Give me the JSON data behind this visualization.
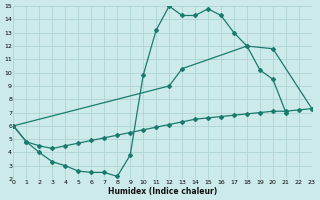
{
  "xlabel": "Humidex (Indice chaleur)",
  "xlim": [
    0,
    23
  ],
  "ylim": [
    2,
    15
  ],
  "xticks": [
    0,
    1,
    2,
    3,
    4,
    5,
    6,
    7,
    8,
    9,
    10,
    11,
    12,
    13,
    14,
    15,
    16,
    17,
    18,
    19,
    20,
    21,
    22,
    23
  ],
  "yticks": [
    2,
    3,
    4,
    5,
    6,
    7,
    8,
    9,
    10,
    11,
    12,
    13,
    14,
    15
  ],
  "bg_color": "#cdeaea",
  "grid_color": "#aed4d4",
  "line_color": "#1a7a6e",
  "series": [
    {
      "x": [
        0,
        1,
        2,
        3,
        4,
        5,
        6,
        7,
        8,
        9,
        10,
        11,
        12,
        13,
        14,
        15,
        16,
        17,
        18,
        19,
        20,
        21
      ],
      "y": [
        6.0,
        4.8,
        4.0,
        3.3,
        3.0,
        2.6,
        2.5,
        2.5,
        2.2,
        3.8,
        9.8,
        13.2,
        15.0,
        14.3,
        14.3,
        14.8,
        14.3,
        13.0,
        12.0,
        10.2,
        9.5,
        7.0
      ]
    },
    {
      "x": [
        0,
        12,
        13,
        18,
        20,
        23
      ],
      "y": [
        6.0,
        9.0,
        10.3,
        12.0,
        11.8,
        7.3
      ]
    },
    {
      "x": [
        0,
        1,
        2,
        3,
        4,
        5,
        6,
        7,
        8,
        9,
        10,
        11,
        12,
        13,
        14,
        15,
        16,
        17,
        18,
        19,
        20,
        21,
        22,
        23
      ],
      "y": [
        6.0,
        4.8,
        4.5,
        4.3,
        4.5,
        4.7,
        4.9,
        5.1,
        5.3,
        5.5,
        5.7,
        5.9,
        6.1,
        6.3,
        6.5,
        6.6,
        6.7,
        6.8,
        6.9,
        7.0,
        7.1,
        7.1,
        7.2,
        7.3
      ]
    }
  ]
}
